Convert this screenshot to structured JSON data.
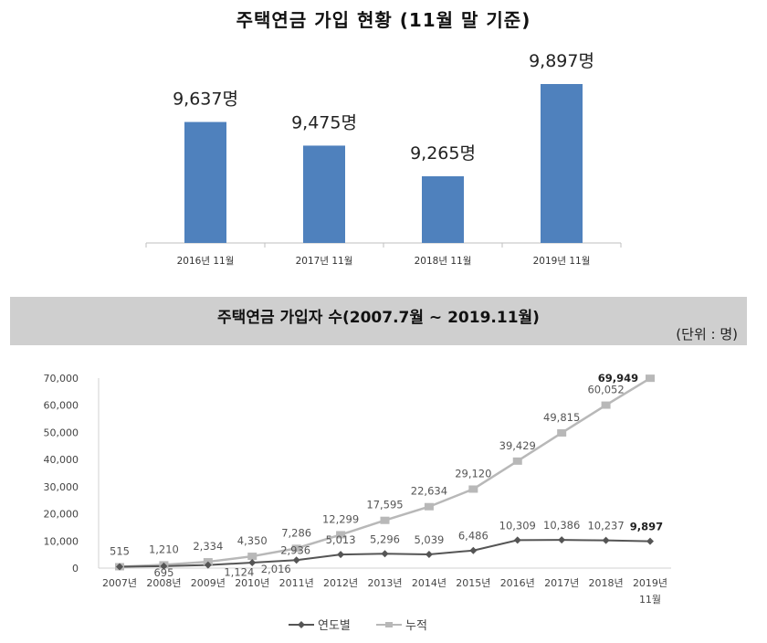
{
  "chart_data": [
    {
      "type": "bar",
      "title": "주택연금 가입 현황 (11월 말 기준)",
      "categories": [
        "2016년 11월",
        "2017년 11월",
        "2018년 11월",
        "2019년 11월"
      ],
      "values": [
        9637,
        9475,
        9265,
        9897
      ],
      "data_labels": [
        "9,637명",
        "9,475명",
        "9,265명",
        "9,897명"
      ],
      "bar_color": "#4f81bd",
      "xlabel": "",
      "ylabel": "",
      "grid": false,
      "legend": null
    },
    {
      "type": "line",
      "title": "주택연금 가입자 수(2007.7월 ~ 2019.11월)",
      "unit_note": "(단위 : 명)",
      "x": [
        "2007년",
        "2008년",
        "2009년",
        "2010년",
        "2011년",
        "2012년",
        "2013년",
        "2014년",
        "2015년",
        "2016년",
        "2017년",
        "2018년",
        "2019년 11월"
      ],
      "series": [
        {
          "name": "연도별",
          "color": "#555555",
          "marker": "diamond",
          "values": [
            515,
            695,
            1124,
            2016,
            2936,
            5013,
            5296,
            5039,
            6486,
            10309,
            10386,
            10237,
            9897
          ],
          "labels": [
            "515",
            "695",
            "1,124",
            "2,016",
            "2,936",
            "5,013",
            "5,296",
            "5,039",
            "6,486",
            "10,309",
            "10,386",
            "10,237",
            "9,897"
          ]
        },
        {
          "name": "누적",
          "color": "#b8b8b8",
          "marker": "square",
          "values": [
            515,
            1210,
            2334,
            4350,
            7286,
            12299,
            17595,
            22634,
            29120,
            39429,
            49815,
            60052,
            69949
          ],
          "labels": [
            "515",
            "1,210",
            "2,334",
            "4,350",
            "7,286",
            "12,299",
            "17,595",
            "22,634",
            "29,120",
            "39,429",
            "49,815",
            "60,052",
            "69,949"
          ]
        }
      ],
      "ylim": [
        0,
        70000
      ],
      "yticks": [
        "0",
        "10,000",
        "20,000",
        "30,000",
        "40,000",
        "50,000",
        "60,000",
        "70,000"
      ],
      "xlabel": "",
      "ylabel": "",
      "grid": false,
      "legend_position": "bottom"
    }
  ],
  "header": {
    "bar_title": "주택연금 가입 현황 (11월 말 기준)",
    "line_title": "주택연금 가입자 수(2007.7월 ~ 2019.11월)",
    "unit": "(단위 : 명)"
  },
  "legend": {
    "annual": "연도별",
    "cumulative": "누적"
  }
}
